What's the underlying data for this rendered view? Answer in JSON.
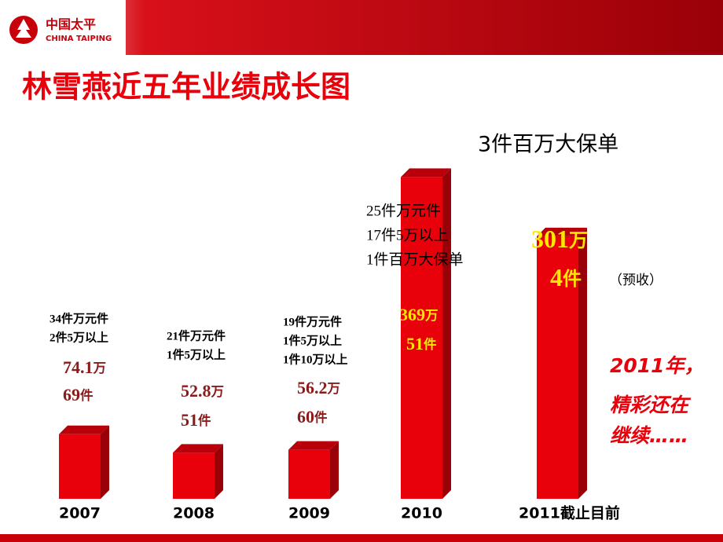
{
  "chart_data": {
    "type": "bar",
    "title": "林雪燕近五年业绩成长图",
    "logo": {
      "name": "中国太平",
      "name_en": "CHINA TAIPING"
    },
    "categories": [
      "2007",
      "2008",
      "2009",
      "2010",
      "2011截止目前"
    ],
    "values": [
      74.1,
      52.8,
      56.2,
      369,
      301
    ],
    "value_unit": "万",
    "counts": [
      69,
      51,
      60,
      51,
      4
    ],
    "count_unit": "件",
    "color": "#e8000b",
    "notes": [
      [
        "34件万元件",
        "2件5万以上"
      ],
      [
        "21件万元件",
        "1件5万以上"
      ],
      [
        "19件万元件",
        "1件5万以上",
        "1件10万以上"
      ],
      [
        "25件万元件",
        "17件5万以上",
        "1件百万大保单"
      ],
      []
    ],
    "annotations": {
      "big_policy": "3件百万大保单",
      "prepaid": "（预收）",
      "slogan": [
        "2011年，",
        "精彩还在",
        "继续……"
      ]
    }
  }
}
